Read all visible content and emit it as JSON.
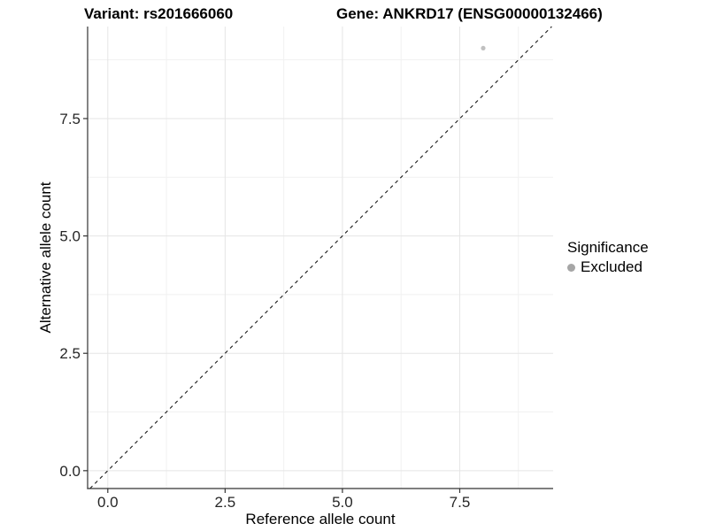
{
  "chart_data": {
    "type": "scatter",
    "title_left": "Variant: rs201666060",
    "title_right": "Gene: ANKRD17 (ENSG00000132466)",
    "xlabel": "Reference allele count",
    "ylabel": "Alternative allele count",
    "x_ticks": [
      0.0,
      2.5,
      5.0,
      7.5
    ],
    "x_tick_labels": [
      "0.0",
      "2.5",
      "5.0",
      "7.5"
    ],
    "y_ticks": [
      0.0,
      2.5,
      5.0,
      7.5
    ],
    "y_tick_labels": [
      "0.0",
      "2.5",
      "5.0",
      "7.5"
    ],
    "x_minor_ticks": [
      1.25,
      3.75,
      6.25,
      8.75
    ],
    "y_minor_ticks": [
      1.25,
      3.75,
      6.25,
      8.75
    ],
    "xlim": [
      -0.43,
      9.49
    ],
    "ylim": [
      -0.38,
      9.46
    ],
    "grid": true,
    "points": [
      {
        "x": 8,
        "y": 9,
        "series": "Excluded"
      }
    ],
    "reference_line": {
      "type": "identity",
      "slope": 1,
      "intercept": 0,
      "style": "dashed"
    },
    "legend": {
      "title": "Significance",
      "position": "right",
      "items": [
        {
          "label": "Excluded",
          "color": "#a6a6a6"
        }
      ]
    },
    "colors": {
      "point": "#c0c0c0",
      "grid_major": "#e5e5e5",
      "grid_minor": "#f1f1f1",
      "axis": "#333333",
      "dashed_line": "#1a1a1a",
      "text": "#262626"
    }
  }
}
